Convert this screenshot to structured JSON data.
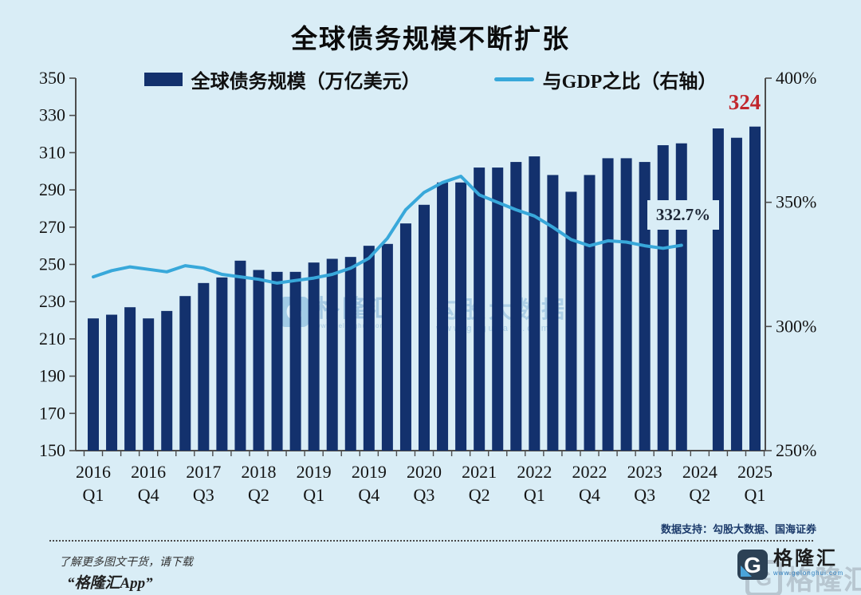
{
  "title": "全球债务规模不断扩张",
  "legend": {
    "debt_label": "全球债务规模（万亿美元）",
    "ratio_label": "与GDP之比（右轴）"
  },
  "annotations": {
    "latest_debt_value": "324",
    "latest_ratio_value": "332.7%"
  },
  "source_note": "数据支持：勾股大数据、国海证券",
  "footer": {
    "download_hint": "了解更多图文干货，请下载",
    "app_name": "“格隆汇App”",
    "brand": "格隆汇",
    "brand_url": "www.gelonghui.com",
    "logo_letter": "G"
  },
  "watermark": {
    "brand": "格隆汇",
    "brand_url": "www.gelonghui.com",
    "data_brand": "勾股大数据",
    "data_url": "www.gogudata.com",
    "logo_letter": "G",
    "corner_brand": "格隆汇",
    "corner_letter": "G"
  },
  "colors": {
    "background": "#d9edf6",
    "bar": "#13316d",
    "line": "#38a8da",
    "highlight_red": "#c1272d"
  },
  "chart_data": {
    "type": "bar",
    "title": "全球债务规模不断扩张",
    "categories": [
      "2016Q1",
      "2016Q2",
      "2016Q3",
      "2016Q4",
      "2017Q1",
      "2017Q2",
      "2017Q3",
      "2017Q4",
      "2018Q1",
      "2018Q2",
      "2018Q3",
      "2018Q4",
      "2019Q1",
      "2019Q2",
      "2019Q3",
      "2019Q4",
      "2020Q1",
      "2020Q2",
      "2020Q3",
      "2020Q4",
      "2021Q1",
      "2021Q2",
      "2021Q3",
      "2021Q4",
      "2022Q1",
      "2022Q2",
      "2022Q3",
      "2022Q4",
      "2023Q1",
      "2023Q2",
      "2023Q3",
      "2023Q4",
      "2024Q1",
      "2024Q2",
      "2024Q3",
      "2024Q4",
      "2025Q1"
    ],
    "series": [
      {
        "name": "全球债务规模（万亿美元）",
        "type": "bar",
        "axis": "left",
        "color": "#13316d",
        "values": [
          221,
          223,
          227,
          221,
          225,
          233,
          240,
          243,
          252,
          247,
          246,
          246,
          251,
          253,
          254,
          260,
          261,
          272,
          282,
          294,
          294,
          302,
          302,
          305,
          308,
          298,
          289,
          298,
          307,
          307,
          305,
          314,
          315,
          null,
          323,
          318,
          324
        ]
      },
      {
        "name": "与GDP之比（右轴）",
        "type": "line",
        "axis": "right",
        "color": "#38a8da",
        "values": [
          320,
          322.5,
          324,
          323,
          322,
          324.5,
          323.5,
          321,
          320,
          319,
          317.5,
          318.5,
          319.5,
          321,
          323.5,
          327.5,
          335.5,
          347,
          354,
          358,
          360.5,
          353,
          350,
          347,
          344.5,
          340,
          335,
          332.5,
          334.5,
          334,
          332.5,
          331.5,
          332.7,
          null,
          null,
          null,
          null
        ]
      }
    ],
    "left_axis": {
      "min": 150,
      "max": 350,
      "step": 20,
      "tick_labels": [
        "150",
        "170",
        "190",
        "210",
        "230",
        "250",
        "270",
        "290",
        "310",
        "330",
        "350"
      ]
    },
    "right_axis": {
      "min": 250,
      "max": 400,
      "step": 50,
      "suffix": "%",
      "tick_labels": [
        "250%",
        "300%",
        "350%",
        "400%"
      ]
    },
    "x_label_every": 3,
    "x_tick_labels": [
      "2016 Q1",
      "2016 Q4",
      "2017 Q3",
      "2018 Q2",
      "2019 Q1",
      "2019 Q4",
      "2020 Q3",
      "2021 Q2",
      "2022 Q1",
      "2022 Q4",
      "2023 Q3",
      "2024 Q2",
      "2025 Q1"
    ],
    "grid": false,
    "legend_position": "top"
  }
}
